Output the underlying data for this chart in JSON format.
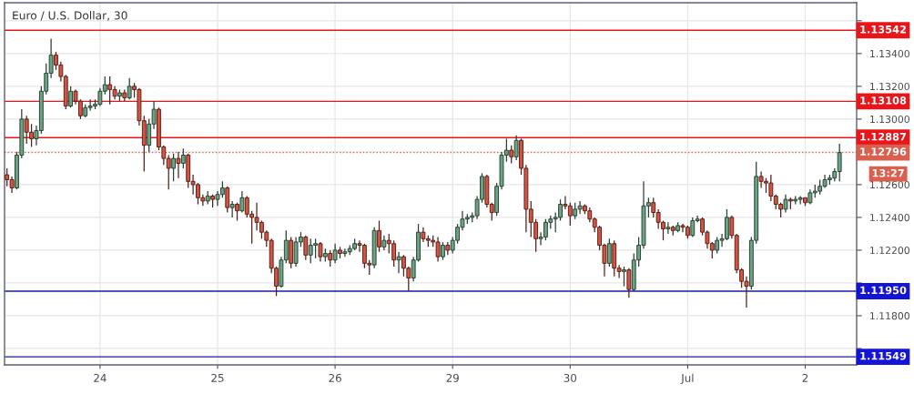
{
  "chart_data": {
    "type": "candlestick",
    "title": "Euro / U.S. Dollar, 30",
    "categories": [
      null,
      null,
      null,
      null,
      null,
      null,
      null,
      null,
      null,
      null,
      null,
      null,
      null,
      null,
      null,
      null,
      null,
      null,
      null,
      "24",
      null,
      null,
      null,
      null,
      null,
      null,
      null,
      null,
      null,
      null,
      null,
      null,
      null,
      null,
      null,
      null,
      null,
      null,
      null,
      null,
      null,
      null,
      null,
      "25",
      null,
      null,
      null,
      null,
      null,
      null,
      null,
      null,
      null,
      null,
      null,
      null,
      null,
      null,
      null,
      null,
      null,
      null,
      null,
      null,
      null,
      null,
      null,
      "26",
      null,
      null,
      null,
      null,
      null,
      null,
      null,
      null,
      null,
      null,
      null,
      null,
      null,
      null,
      null,
      null,
      null,
      null,
      null,
      null,
      null,
      null,
      null,
      "29",
      null,
      null,
      null,
      null,
      null,
      null,
      null,
      null,
      null,
      null,
      null,
      null,
      null,
      null,
      null,
      null,
      null,
      null,
      null,
      null,
      null,
      null,
      null,
      "30",
      null,
      null,
      null,
      null,
      null,
      null,
      null,
      null,
      null,
      null,
      null,
      null,
      null,
      null,
      null,
      null,
      null,
      null,
      null,
      null,
      null,
      null,
      null,
      "Jul",
      null,
      null,
      null,
      null,
      null,
      null,
      null,
      null,
      null,
      null,
      null,
      null,
      null,
      null,
      null,
      null,
      null,
      null,
      null,
      null,
      null,
      null,
      null,
      "2",
      null,
      null,
      null,
      null,
      null,
      null,
      null
    ],
    "ohlc": [
      [
        1.1266,
        1.127,
        1.1259,
        1.1263
      ],
      [
        1.1263,
        1.1265,
        1.1255,
        1.1258
      ],
      [
        1.1258,
        1.128,
        1.1257,
        1.1278
      ],
      [
        1.1278,
        1.1306,
        1.1276,
        1.13
      ],
      [
        1.13,
        1.1302,
        1.1285,
        1.1292
      ],
      [
        1.1292,
        1.1297,
        1.1283,
        1.1288
      ],
      [
        1.1288,
        1.1296,
        1.1284,
        1.1293
      ],
      [
        1.1293,
        1.132,
        1.1291,
        1.1317
      ],
      [
        1.1317,
        1.1334,
        1.1315,
        1.1328
      ],
      [
        1.1328,
        1.1349,
        1.1325,
        1.1339
      ],
      [
        1.1339,
        1.1341,
        1.133,
        1.1333
      ],
      [
        1.1333,
        1.1335,
        1.1323,
        1.1326
      ],
      [
        1.1326,
        1.1327,
        1.1306,
        1.1308
      ],
      [
        1.1308,
        1.132,
        1.1307,
        1.1317
      ],
      [
        1.1317,
        1.1318,
        1.1309,
        1.1311
      ],
      [
        1.1311,
        1.1312,
        1.13,
        1.1302
      ],
      [
        1.1302,
        1.1309,
        1.1301,
        1.1307
      ],
      [
        1.1307,
        1.1312,
        1.1305,
        1.1308
      ],
      [
        1.1308,
        1.1312,
        1.1306,
        1.1309
      ],
      [
        1.1309,
        1.1319,
        1.1308,
        1.1317
      ],
      [
        1.1317,
        1.1326,
        1.1315,
        1.1321
      ],
      [
        1.1321,
        1.1326,
        1.1309,
        1.1318
      ],
      [
        1.1318,
        1.132,
        1.1312,
        1.1314
      ],
      [
        1.1314,
        1.1318,
        1.1311,
        1.1316
      ],
      [
        1.1316,
        1.1318,
        1.1311,
        1.1313
      ],
      [
        1.1313,
        1.1325,
        1.1312,
        1.132
      ],
      [
        1.132,
        1.1322,
        1.1313,
        1.1318
      ],
      [
        1.1318,
        1.1319,
        1.1296,
        1.1299
      ],
      [
        1.1299,
        1.1302,
        1.1268,
        1.1284
      ],
      [
        1.1284,
        1.13,
        1.128,
        1.1297
      ],
      [
        1.1297,
        1.1311,
        1.1294,
        1.1306
      ],
      [
        1.1306,
        1.1307,
        1.1281,
        1.1283
      ],
      [
        1.1283,
        1.1284,
        1.1272,
        1.1276
      ],
      [
        1.1276,
        1.1278,
        1.1257,
        1.127
      ],
      [
        1.127,
        1.1279,
        1.1262,
        1.1276
      ],
      [
        1.1276,
        1.128,
        1.1264,
        1.1273
      ],
      [
        1.1273,
        1.1282,
        1.127,
        1.1278
      ],
      [
        1.1278,
        1.1279,
        1.1258,
        1.1262
      ],
      [
        1.1262,
        1.1266,
        1.1254,
        1.126
      ],
      [
        1.126,
        1.1261,
        1.1248,
        1.1252
      ],
      [
        1.1252,
        1.1254,
        1.1247,
        1.125
      ],
      [
        1.125,
        1.1256,
        1.1248,
        1.1253
      ],
      [
        1.1253,
        1.1254,
        1.1246,
        1.1251
      ],
      [
        1.1251,
        1.1256,
        1.1247,
        1.1254
      ],
      [
        1.1254,
        1.1262,
        1.1252,
        1.1258
      ],
      [
        1.1258,
        1.1259,
        1.1243,
        1.1246
      ],
      [
        1.1246,
        1.125,
        1.124,
        1.1248
      ],
      [
        1.1248,
        1.1249,
        1.1238,
        1.1244
      ],
      [
        1.1244,
        1.1256,
        1.1243,
        1.1252
      ],
      [
        1.1252,
        1.1253,
        1.124,
        1.1242
      ],
      [
        1.1242,
        1.1244,
        1.1224,
        1.124
      ],
      [
        1.124,
        1.1249,
        1.1232,
        1.1237
      ],
      [
        1.1237,
        1.1238,
        1.1227,
        1.1231
      ],
      [
        1.1231,
        1.1232,
        1.1222,
        1.1226
      ],
      [
        1.1226,
        1.1227,
        1.1206,
        1.1209
      ],
      [
        1.1209,
        1.121,
        1.1192,
        1.1198
      ],
      [
        1.1198,
        1.1216,
        1.1197,
        1.1214
      ],
      [
        1.1214,
        1.1232,
        1.1212,
        1.1226
      ],
      [
        1.1226,
        1.1228,
        1.1209,
        1.1212
      ],
      [
        1.1212,
        1.1228,
        1.121,
        1.1225
      ],
      [
        1.1225,
        1.1231,
        1.1222,
        1.1228
      ],
      [
        1.1228,
        1.1229,
        1.1214,
        1.1217
      ],
      [
        1.1217,
        1.1227,
        1.1212,
        1.1223
      ],
      [
        1.1223,
        1.1227,
        1.1215,
        1.1224
      ],
      [
        1.1224,
        1.1225,
        1.1213,
        1.1216
      ],
      [
        1.1216,
        1.1221,
        1.1213,
        1.1218
      ],
      [
        1.1218,
        1.122,
        1.121,
        1.1214
      ],
      [
        1.1214,
        1.1224,
        1.1212,
        1.122
      ],
      [
        1.122,
        1.1222,
        1.1215,
        1.1218
      ],
      [
        1.1218,
        1.1221,
        1.1216,
        1.1219
      ],
      [
        1.1219,
        1.1223,
        1.1217,
        1.1221
      ],
      [
        1.1221,
        1.1227,
        1.122,
        1.1224
      ],
      [
        1.1224,
        1.1226,
        1.1219,
        1.1223
      ],
      [
        1.1223,
        1.1224,
        1.1209,
        1.1212
      ],
      [
        1.1212,
        1.1214,
        1.1205,
        1.1211
      ],
      [
        1.1211,
        1.1234,
        1.1209,
        1.1232
      ],
      [
        1.1232,
        1.1238,
        1.1219,
        1.1222
      ],
      [
        1.1222,
        1.1229,
        1.122,
        1.1226
      ],
      [
        1.1226,
        1.123,
        1.1218,
        1.1224
      ],
      [
        1.1224,
        1.1226,
        1.121,
        1.1214
      ],
      [
        1.1214,
        1.1219,
        1.1206,
        1.1216
      ],
      [
        1.1216,
        1.1217,
        1.1204,
        1.1209
      ],
      [
        1.1209,
        1.121,
        1.1195,
        1.1203
      ],
      [
        1.1203,
        1.1216,
        1.1201,
        1.1214
      ],
      [
        1.1214,
        1.1236,
        1.1213,
        1.1231
      ],
      [
        1.1231,
        1.1234,
        1.1225,
        1.1227
      ],
      [
        1.1227,
        1.1229,
        1.1222,
        1.1226
      ],
      [
        1.1226,
        1.1229,
        1.1222,
        1.1225
      ],
      [
        1.1225,
        1.1228,
        1.1213,
        1.1216
      ],
      [
        1.1216,
        1.1225,
        1.1214,
        1.1223
      ],
      [
        1.1223,
        1.1225,
        1.1217,
        1.122
      ],
      [
        1.122,
        1.1228,
        1.1218,
        1.1226
      ],
      [
        1.1226,
        1.1236,
        1.1224,
        1.1234
      ],
      [
        1.1234,
        1.1244,
        1.1232,
        1.1239
      ],
      [
        1.1239,
        1.1242,
        1.1236,
        1.124
      ],
      [
        1.124,
        1.1243,
        1.1237,
        1.1241
      ],
      [
        1.1241,
        1.1253,
        1.1239,
        1.1251
      ],
      [
        1.1251,
        1.1267,
        1.1249,
        1.1265
      ],
      [
        1.1265,
        1.1266,
        1.1246,
        1.1248
      ],
      [
        1.1248,
        1.1249,
        1.1238,
        1.1243
      ],
      [
        1.1243,
        1.1261,
        1.1241,
        1.1259
      ],
      [
        1.1259,
        1.128,
        1.1257,
        1.1278
      ],
      [
        1.1278,
        1.1288,
        1.1274,
        1.1281
      ],
      [
        1.1281,
        1.1284,
        1.1273,
        1.1277
      ],
      [
        1.1277,
        1.129,
        1.1275,
        1.1287
      ],
      [
        1.1287,
        1.1288,
        1.1266,
        1.127
      ],
      [
        1.127,
        1.1272,
        1.1231,
        1.1245
      ],
      [
        1.1245,
        1.125,
        1.1228,
        1.1237
      ],
      [
        1.1237,
        1.1239,
        1.1219,
        1.1227
      ],
      [
        1.1227,
        1.1231,
        1.1223,
        1.1228
      ],
      [
        1.1228,
        1.1239,
        1.1226,
        1.1237
      ],
      [
        1.1237,
        1.1241,
        1.1233,
        1.1239
      ],
      [
        1.1239,
        1.1243,
        1.1231,
        1.124
      ],
      [
        1.124,
        1.1251,
        1.1238,
        1.1248
      ],
      [
        1.1248,
        1.1253,
        1.1245,
        1.1247
      ],
      [
        1.1247,
        1.1249,
        1.1235,
        1.1241
      ],
      [
        1.1241,
        1.1249,
        1.1239,
        1.1245
      ],
      [
        1.1245,
        1.125,
        1.1242,
        1.1247
      ],
      [
        1.1247,
        1.1248,
        1.1242,
        1.1244
      ],
      [
        1.1244,
        1.1246,
        1.1237,
        1.1239
      ],
      [
        1.1239,
        1.124,
        1.1231,
        1.1234
      ],
      [
        1.1234,
        1.1235,
        1.122,
        1.1223
      ],
      [
        1.1223,
        1.1224,
        1.1204,
        1.1212
      ],
      [
        1.1212,
        1.1227,
        1.121,
        1.1224
      ],
      [
        1.1224,
        1.1226,
        1.1204,
        1.1209
      ],
      [
        1.1209,
        1.1211,
        1.1203,
        1.1207
      ],
      [
        1.1207,
        1.121,
        1.1198,
        1.1208
      ],
      [
        1.1208,
        1.1209,
        1.1191,
        1.1196
      ],
      [
        1.1196,
        1.1218,
        1.1195,
        1.1214
      ],
      [
        1.1214,
        1.1228,
        1.121,
        1.1223
      ],
      [
        1.1223,
        1.1262,
        1.1221,
        1.1247
      ],
      [
        1.1247,
        1.1252,
        1.124,
        1.1249
      ],
      [
        1.1249,
        1.1252,
        1.124,
        1.1243
      ],
      [
        1.1243,
        1.1245,
        1.1233,
        1.1237
      ],
      [
        1.1237,
        1.1238,
        1.1226,
        1.1233
      ],
      [
        1.1233,
        1.1237,
        1.123,
        1.1234
      ],
      [
        1.1234,
        1.1235,
        1.1229,
        1.1232
      ],
      [
        1.1232,
        1.1237,
        1.1231,
        1.1235
      ],
      [
        1.1235,
        1.1236,
        1.1231,
        1.1234
      ],
      [
        1.1234,
        1.1235,
        1.1227,
        1.1229
      ],
      [
        1.1229,
        1.124,
        1.1228,
        1.1238
      ],
      [
        1.1238,
        1.1241,
        1.1237,
        1.1239
      ],
      [
        1.1239,
        1.124,
        1.1229,
        1.1231
      ],
      [
        1.1231,
        1.1232,
        1.1221,
        1.1224
      ],
      [
        1.1224,
        1.1225,
        1.1215,
        1.122
      ],
      [
        1.122,
        1.1228,
        1.1218,
        1.1226
      ],
      [
        1.1226,
        1.123,
        1.1222,
        1.1227
      ],
      [
        1.1227,
        1.1245,
        1.1226,
        1.124
      ],
      [
        1.124,
        1.1241,
        1.1227,
        1.1229
      ],
      [
        1.1229,
        1.123,
        1.1206,
        1.1208
      ],
      [
        1.1208,
        1.1209,
        1.1197,
        1.1201
      ],
      [
        1.1201,
        1.1204,
        1.1185,
        1.1198
      ],
      [
        1.1198,
        1.1228,
        1.1196,
        1.1226
      ],
      [
        1.1226,
        1.1274,
        1.1224,
        1.1265
      ],
      [
        1.1265,
        1.1268,
        1.1258,
        1.1262
      ],
      [
        1.1262,
        1.1264,
        1.1255,
        1.1261
      ],
      [
        1.1261,
        1.1266,
        1.125,
        1.1253
      ],
      [
        1.1253,
        1.1254,
        1.1245,
        1.1248
      ],
      [
        1.1248,
        1.1249,
        1.124,
        1.1245
      ],
      [
        1.1245,
        1.1254,
        1.1243,
        1.1251
      ],
      [
        1.1251,
        1.1252,
        1.1245,
        1.125
      ],
      [
        1.125,
        1.1253,
        1.1248,
        1.1251
      ],
      [
        1.1251,
        1.1253,
        1.1248,
        1.1252
      ],
      [
        1.1252,
        1.1252,
        1.1247,
        1.1249
      ],
      [
        1.1249,
        1.1257,
        1.1248,
        1.1255
      ],
      [
        1.1255,
        1.126,
        1.1252,
        1.1256
      ],
      [
        1.1256,
        1.1263,
        1.1254,
        1.1259
      ],
      [
        1.1259,
        1.1266,
        1.1258,
        1.1263
      ],
      [
        1.1263,
        1.1266,
        1.126,
        1.1264
      ],
      [
        1.1264,
        1.127,
        1.1262,
        1.1268
      ],
      [
        1.1268,
        1.1285,
        1.1262,
        1.12796
      ]
    ],
    "colors": [
      "#d75442",
      "#d75442",
      "#6ba583",
      "#6ba583",
      "#d75442",
      "#d75442",
      "#6ba583",
      "#6ba583",
      "#6ba583",
      "#6ba583",
      "#d75442",
      "#d75442",
      "#d75442",
      "#6ba583",
      "#d75442",
      "#d75442",
      "#6ba583",
      "#6ba583",
      "#6ba583",
      "#6ba583",
      "#6ba583",
      "#d75442",
      "#d75442",
      "#6ba583",
      "#d75442",
      "#6ba583",
      "#d75442",
      "#d75442",
      "#d75442",
      "#6ba583",
      "#6ba583",
      "#d75442",
      "#d75442",
      "#d75442",
      "#6ba583",
      "#d75442",
      "#6ba583",
      "#d75442",
      "#d75442",
      "#d75442",
      "#d75442",
      "#6ba583",
      "#d75442",
      "#6ba583",
      "#6ba583",
      "#d75442",
      "#6ba583",
      "#d75442",
      "#6ba583",
      "#d75442",
      "#d75442",
      "#d75442",
      "#d75442",
      "#d75442",
      "#d75442",
      "#d75442",
      "#6ba583",
      "#6ba583",
      "#d75442",
      "#6ba583",
      "#6ba583",
      "#d75442",
      "#6ba583",
      "#6ba583",
      "#d75442",
      "#6ba583",
      "#d75442",
      "#6ba583",
      "#d75442",
      "#6ba583",
      "#6ba583",
      "#6ba583",
      "#d75442",
      "#d75442",
      "#d75442",
      "#6ba583",
      "#d75442",
      "#6ba583",
      "#d75442",
      "#d75442",
      "#6ba583",
      "#d75442",
      "#d75442",
      "#6ba583",
      "#6ba583",
      "#d75442",
      "#d75442",
      "#d75442",
      "#d75442",
      "#6ba583",
      "#d75442",
      "#6ba583",
      "#6ba583",
      "#6ba583",
      "#6ba583",
      "#6ba583",
      "#6ba583",
      "#6ba583",
      "#d75442",
      "#d75442",
      "#6ba583",
      "#6ba583",
      "#6ba583",
      "#d75442",
      "#6ba583",
      "#d75442",
      "#d75442",
      "#d75442",
      "#d75442",
      "#6ba583",
      "#6ba583",
      "#6ba583",
      "#6ba583",
      "#6ba583",
      "#d75442",
      "#d75442",
      "#6ba583",
      "#6ba583",
      "#d75442",
      "#d75442",
      "#d75442",
      "#d75442",
      "#d75442",
      "#6ba583",
      "#d75442",
      "#d75442",
      "#6ba583",
      "#d75442",
      "#6ba583",
      "#6ba583",
      "#6ba583",
      "#6ba583",
      "#d75442",
      "#d75442",
      "#d75442",
      "#6ba583",
      "#d75442",
      "#6ba583",
      "#d75442",
      "#d75442",
      "#6ba583",
      "#6ba583",
      "#d75442",
      "#d75442",
      "#d75442",
      "#6ba583",
      "#6ba583",
      "#6ba583",
      "#d75442",
      "#d75442",
      "#d75442",
      "#d75442",
      "#6ba583",
      "#6ba583",
      "#d75442",
      "#d75442",
      "#d75442",
      "#d75442",
      "#d75442",
      "#6ba583",
      "#d75442",
      "#6ba583",
      "#6ba583",
      "#d75442",
      "#6ba583",
      "#6ba583",
      "#6ba583",
      "#6ba583",
      "#6ba583",
      "#6ba583",
      "#6ba583"
    ],
    "ylim": [
      1.115,
      1.1371
    ],
    "yticks": [
      {
        "value": 1.116,
        "label": null
      },
      {
        "value": 1.118,
        "label": "1.11800"
      },
      {
        "value": 1.12,
        "label": null
      },
      {
        "value": 1.122,
        "label": "1.12200"
      },
      {
        "value": 1.124,
        "label": "1.12400"
      },
      {
        "value": 1.126,
        "label": "1.12600"
      },
      {
        "value": 1.128,
        "label": null
      },
      {
        "value": 1.13,
        "label": "1.13000"
      },
      {
        "value": 1.132,
        "label": "1.13200"
      },
      {
        "value": 1.134,
        "label": "1.13400"
      },
      {
        "value": 1.136,
        "label": null
      }
    ],
    "grid": true,
    "ref_lines": [
      {
        "axis": "y",
        "value": 1.13542,
        "label": "1.13542",
        "color": "#e8161b",
        "line_style": "solid"
      },
      {
        "axis": "y",
        "value": 1.13108,
        "label": "1.13108",
        "color": "#e8161b",
        "line_style": "solid"
      },
      {
        "axis": "y",
        "value": 1.12887,
        "label": "1.12887",
        "color": "#e8161b",
        "line_style": "solid"
      },
      {
        "axis": "y",
        "value": 1.12796,
        "label": "1.12796",
        "color": "#d9604f",
        "line_style": "dotted"
      },
      {
        "axis": "y",
        "value": 1.1195,
        "label": "1.11950",
        "color": "#1414d8",
        "line_style": "solid"
      },
      {
        "axis": "y",
        "value": 1.11549,
        "label": "1.11549",
        "color": "#1414d8",
        "line_style": "solid"
      }
    ],
    "annotations": [
      "13:27"
    ]
  }
}
